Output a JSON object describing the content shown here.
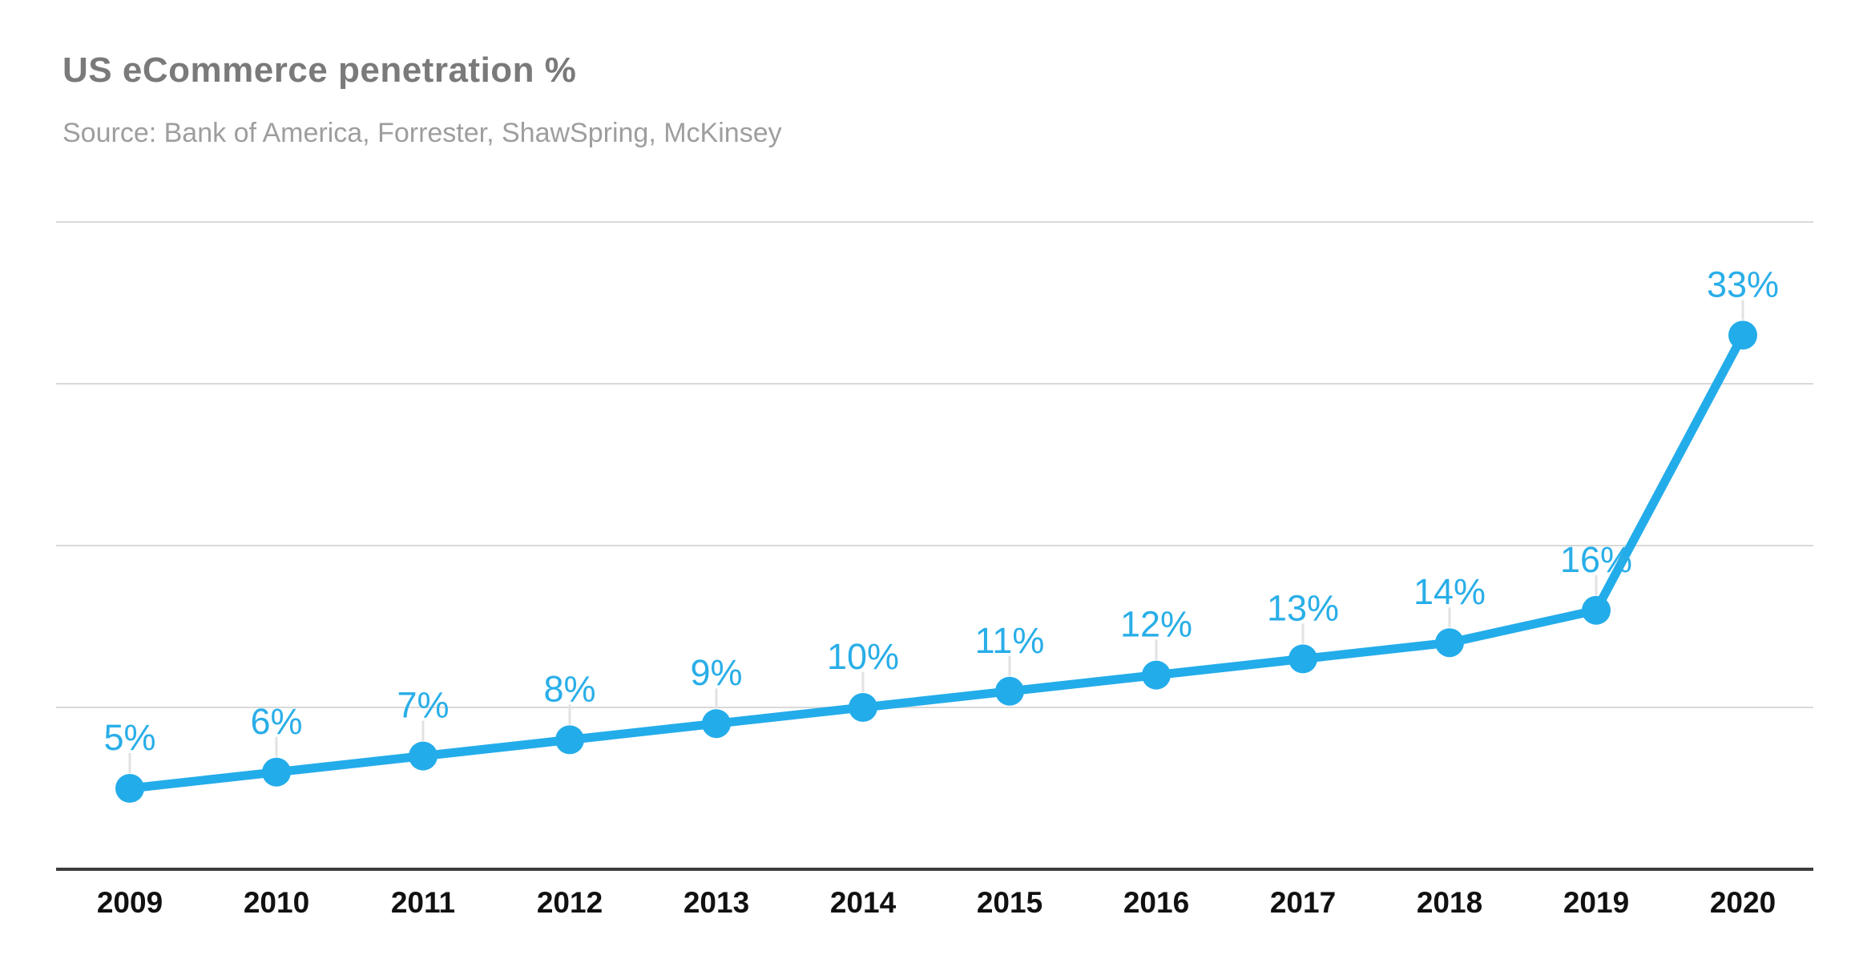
{
  "header": {
    "title": "US eCommerce penetration %",
    "source": "Source: Bank of America, Forrester, ShawSpring, McKinsey"
  },
  "chart_data": {
    "type": "line",
    "title": "US eCommerce penetration %",
    "subtitle": "Source: Bank of America, Forrester, ShawSpring, McKinsey",
    "categories": [
      "2009",
      "2010",
      "2011",
      "2012",
      "2013",
      "2014",
      "2015",
      "2016",
      "2017",
      "2018",
      "2019",
      "2020"
    ],
    "series": [
      {
        "name": "US eCommerce penetration",
        "values": [
          5,
          6,
          7,
          8,
          9,
          10,
          11,
          12,
          13,
          14,
          16,
          33
        ],
        "point_labels": [
          "5%",
          "6%",
          "7%",
          "8%",
          "9%",
          "10%",
          "11%",
          "12%",
          "13%",
          "14%",
          "16%",
          "33%"
        ]
      }
    ],
    "xlabel": "",
    "ylabel": "",
    "ylim": [
      0,
      40
    ],
    "gridline_step": 10,
    "grid": "horizontal-only",
    "y_axis_labels_visible": false,
    "legend": "none",
    "colors": {
      "line": "#23acea",
      "point": "#23acea",
      "point_label": "#29aee8",
      "gridline": "#d9d9d9",
      "axis": "#3d3d3d",
      "year_label": "#111111",
      "leader_tick": "#e2e2e2",
      "title": "#7a7a7a",
      "source": "#9e9e9e",
      "background": "#ffffff"
    }
  }
}
